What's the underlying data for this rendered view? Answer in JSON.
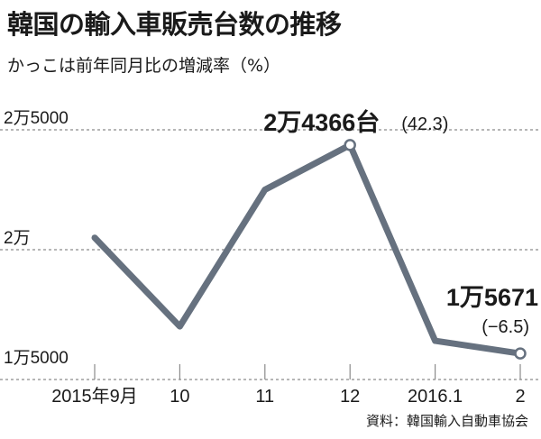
{
  "header": {
    "title": "韓国の輸入車販売台数の推移",
    "subtitle": "かっこは前年同月比の増減率（%）"
  },
  "footer": {
    "source": "資料：韓国輸入自動車協会"
  },
  "colors": {
    "line": "#66717f",
    "grid": "#8a8a8a",
    "marker_fill": "#ffffff",
    "text": "#1a1a1a"
  },
  "chart_data": {
    "type": "line",
    "title": "韓国の輸入車販売台数の推移",
    "subtitle": "かっこは前年同月比の増減率（%）",
    "xlabel": "",
    "ylabel": "",
    "categories": [
      "2015年9月",
      "10",
      "11",
      "12",
      "2016.1",
      "2"
    ],
    "series": [
      {
        "values": [
          20500,
          16800,
          22500,
          24366,
          16200,
          15671
        ]
      }
    ],
    "ylim": [
      15000,
      25000
    ],
    "yticks": [
      15000,
      20000,
      25000
    ],
    "ytick_labels": [
      "1万5000",
      "2万",
      "2万5000"
    ],
    "grid": true,
    "annotations": [
      {
        "point_index": 3,
        "value_label": "2万4366台",
        "change_label": "(42.3)"
      },
      {
        "point_index": 5,
        "value_label": "1万5671",
        "change_label": "(−6.5)"
      }
    ]
  }
}
